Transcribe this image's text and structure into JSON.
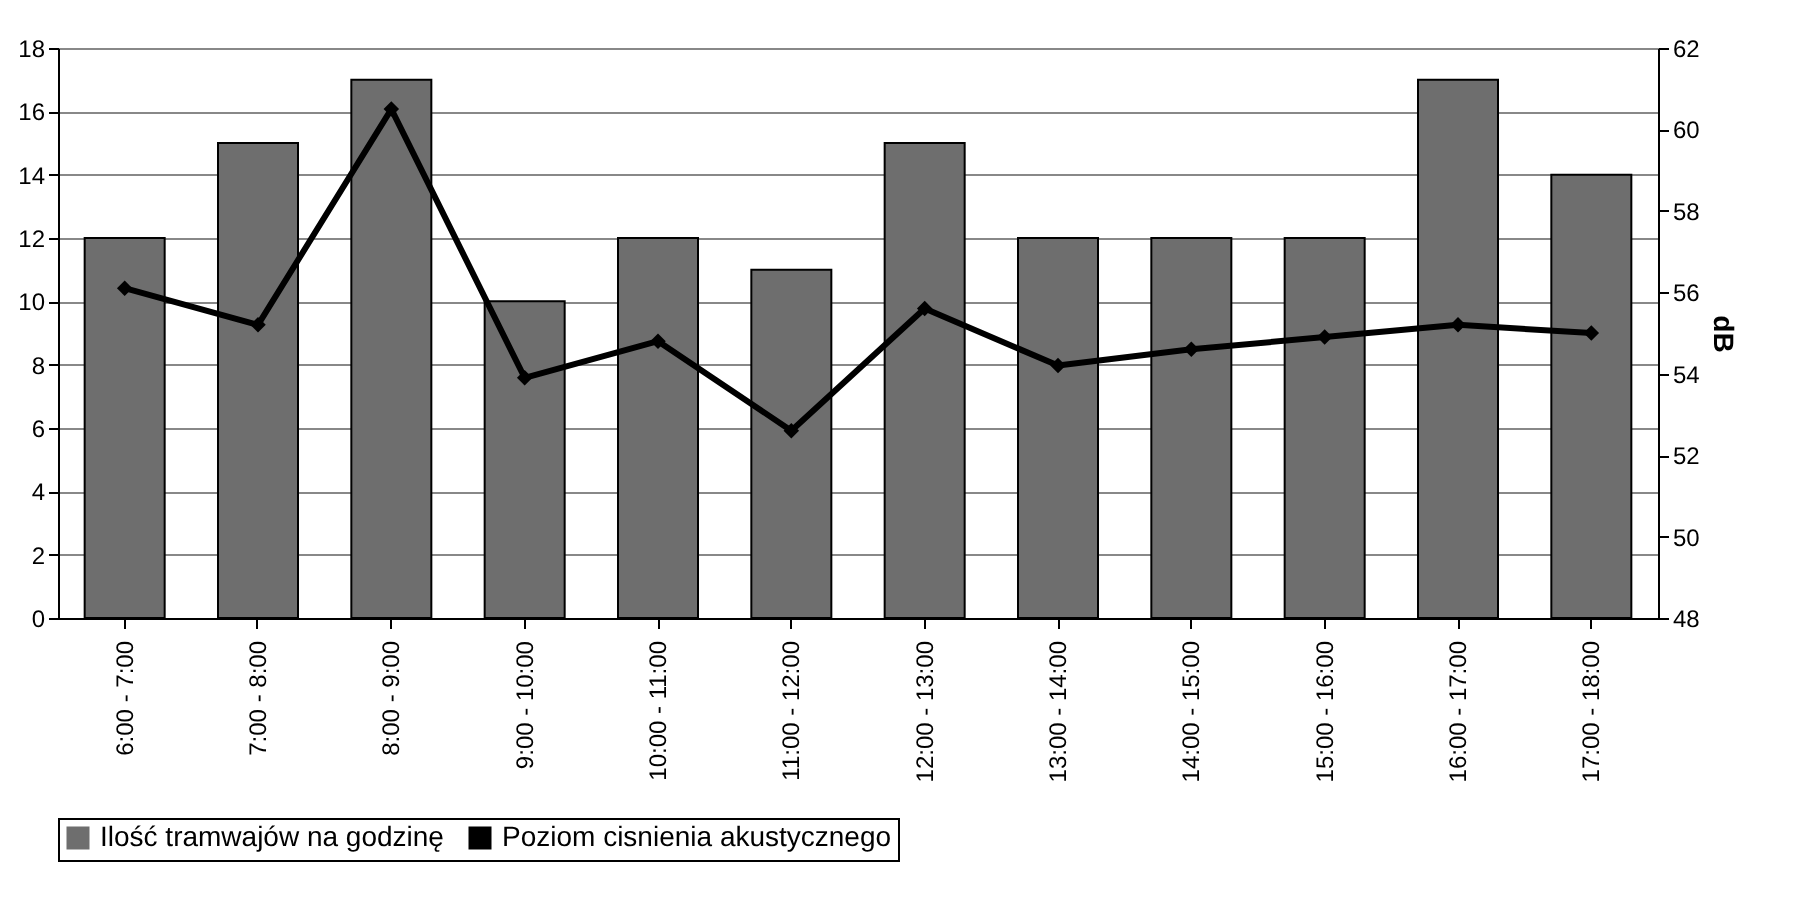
{
  "chart_data": {
    "type": "bar",
    "categories": [
      "6:00 - 7:00",
      "7:00 - 8:00",
      "8:00 - 9:00",
      "9:00 - 10:00",
      "10:00 - 11:00",
      "11:00 - 12:00",
      "12:00 - 13:00",
      "13:00 - 14:00",
      "14:00 - 15:00",
      "15:00 - 16:00",
      "16:00 - 17:00",
      "17:00 - 18:00"
    ],
    "series": [
      {
        "name": "Ilość tramwajów na godzinę",
        "color": "#6e6e6e",
        "values": [
          12,
          15,
          17,
          10,
          12,
          11,
          15,
          12,
          12,
          12,
          17,
          14
        ]
      },
      {
        "name": "Poziom cisnienia akustycznego",
        "type": "line",
        "axis": "y2",
        "color": "#000000",
        "values": [
          56.1,
          55.2,
          60.5,
          53.9,
          54.8,
          52.6,
          55.6,
          54.2,
          54.6,
          54.9,
          55.2,
          55.0
        ]
      }
    ],
    "y2label": "dB",
    "ylim": [
      0,
      18
    ],
    "yticks": [
      0,
      2,
      4,
      6,
      8,
      10,
      12,
      14,
      16,
      18
    ],
    "y2lim": [
      48,
      62
    ],
    "y2ticks": [
      48,
      50,
      52,
      54,
      56,
      58,
      60,
      62
    ],
    "grid": "y",
    "legend": "bottom",
    "marker": "diamond",
    "line_style": "solid"
  }
}
